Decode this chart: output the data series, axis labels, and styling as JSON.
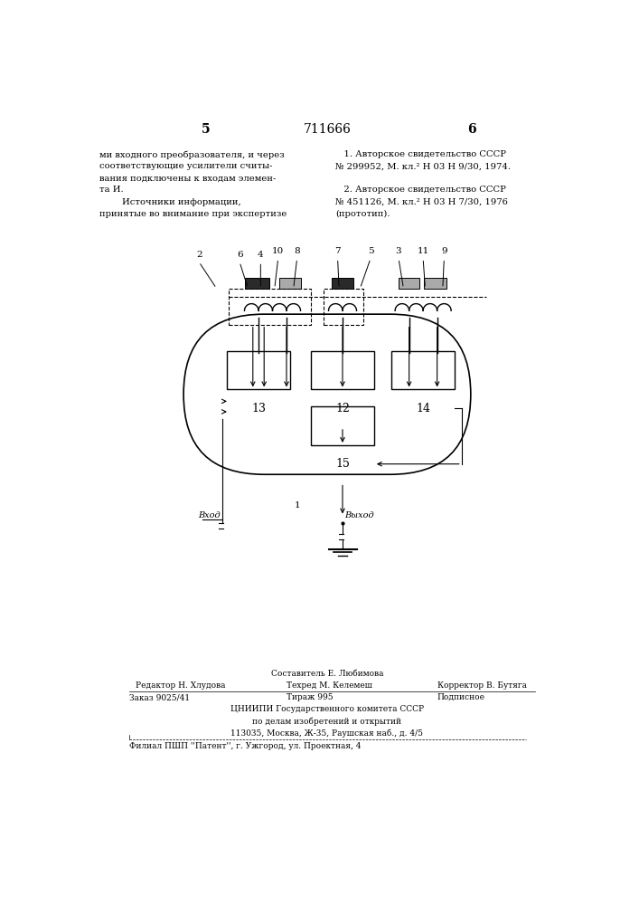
{
  "bg_color": "#ffffff",
  "page_number_left": "5",
  "page_number_center": "711666",
  "page_number_right": "6",
  "left_text_lines": [
    "ми входного преобразователя, и через",
    "соответствующие усилители считы-",
    "вания подключены к входам элемен-",
    "та И.",
    "        Источники информации,",
    "принятые во внимание при экспертизе"
  ],
  "right_text_lines": [
    "   1. Авторское свидетельство СССР",
    "№ 299952, М. кл.² Н 03 Н 9/30, 1974.",
    "",
    "   2. Авторское свидетельство СССР",
    "№ 451126, М. кл.² Н 03 Н 7/30, 1976",
    "(прототип)."
  ],
  "footer_line1": "Составитель Е. Любимова",
  "footer_line2_left": "Редактор Н. Хлудова",
  "footer_line2_mid": "Техред М. Келемеш",
  "footer_line2_right": "Корректор В. Бутяга",
  "footer_line3_left": "Заказ 9025/41",
  "footer_line3_mid": "Тираж 995",
  "footer_line3_right": "Подписное",
  "footer_line4": "ЦНИИПИ Государственного комитета СССР",
  "footer_line5": "по делам изобретений и открытий",
  "footer_line6": "113035, Москва, Ж-35, Раушская наб., д. 4/5",
  "footer_line7": "Филиал ПШП ''Патент'', г. Ужгород, ул. Проектная, 4"
}
